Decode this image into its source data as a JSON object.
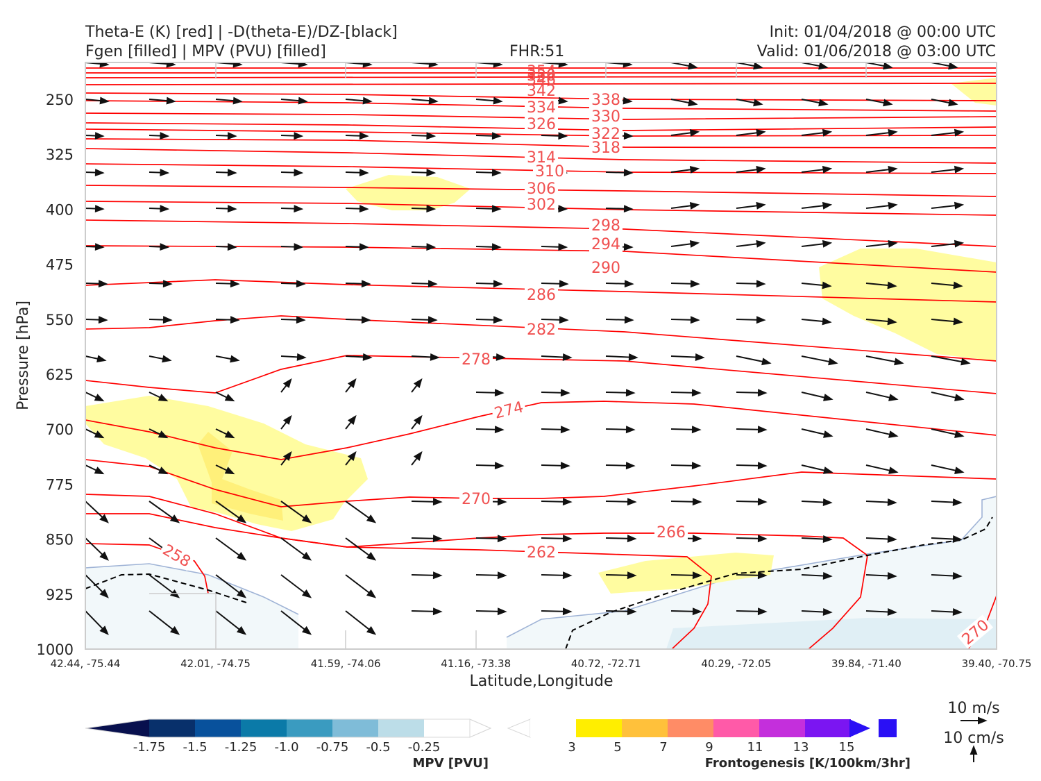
{
  "header": {
    "title_left_1": "Theta-E (K) [red] | -D(theta-E)/DZ-[black]",
    "title_left_2": "Fgen [filled] | MPV (PVU) [filled]",
    "fhr": "FHR:51",
    "init": "Init: 01/04/2018 @ 00:00 UTC",
    "valid": "Valid: 01/06/2018 @ 03:00 UTC"
  },
  "chart_data": {
    "type": "cross-section",
    "ylabel": "Pressure [hPa]",
    "xlabel": "Latitude,Longitude",
    "ylim": [
      1000,
      200
    ],
    "yticks": [
      "250",
      "325",
      "400",
      "475",
      "550",
      "625",
      "700",
      "775",
      "850",
      "925",
      "1000"
    ],
    "xticks": [
      "42.44, -75.44",
      "42.01, -74.75",
      "41.59, -74.06",
      "41.16, -73.38",
      "40.72, -72.71",
      "40.29, -72.05",
      "39.84, -71.40",
      "39.40, -70.75"
    ],
    "theta_e_contours": {
      "color": "#ff0000",
      "levels": [
        "354",
        "350",
        "346",
        "342",
        "338",
        "334",
        "330",
        "326",
        "322",
        "318",
        "314",
        "310",
        "306",
        "302",
        "298",
        "294",
        "290",
        "286",
        "282",
        "278",
        "274",
        "270",
        "266",
        "262",
        "258",
        "270"
      ]
    },
    "mpv_colorbar": {
      "label": "MPV [PVU]",
      "ticks": [
        "-1.75",
        "-1.5",
        "-1.25",
        "-1.0",
        "-0.75",
        "-0.5",
        "-0.25"
      ],
      "colors": [
        "#08104e",
        "#08306b",
        "#08519c",
        "#0b7aa8",
        "#3a9bc0",
        "#7fbcd8",
        "#bcdde8",
        "#ffffff"
      ]
    },
    "fgen_colorbar": {
      "label": "Frontogenesis [K/100km/3hr]",
      "ticks": [
        "3",
        "5",
        "7",
        "9",
        "11",
        "13",
        "15"
      ],
      "colors": [
        "#ffffff",
        "#ffee00",
        "#ffc13b",
        "#ff8c66",
        "#ff5aa8",
        "#c42fdc",
        "#7b15f2",
        "#2a10f5"
      ]
    },
    "reference_vectors": {
      "horizontal": "10 m/s",
      "vertical": "10 cm/s"
    }
  }
}
